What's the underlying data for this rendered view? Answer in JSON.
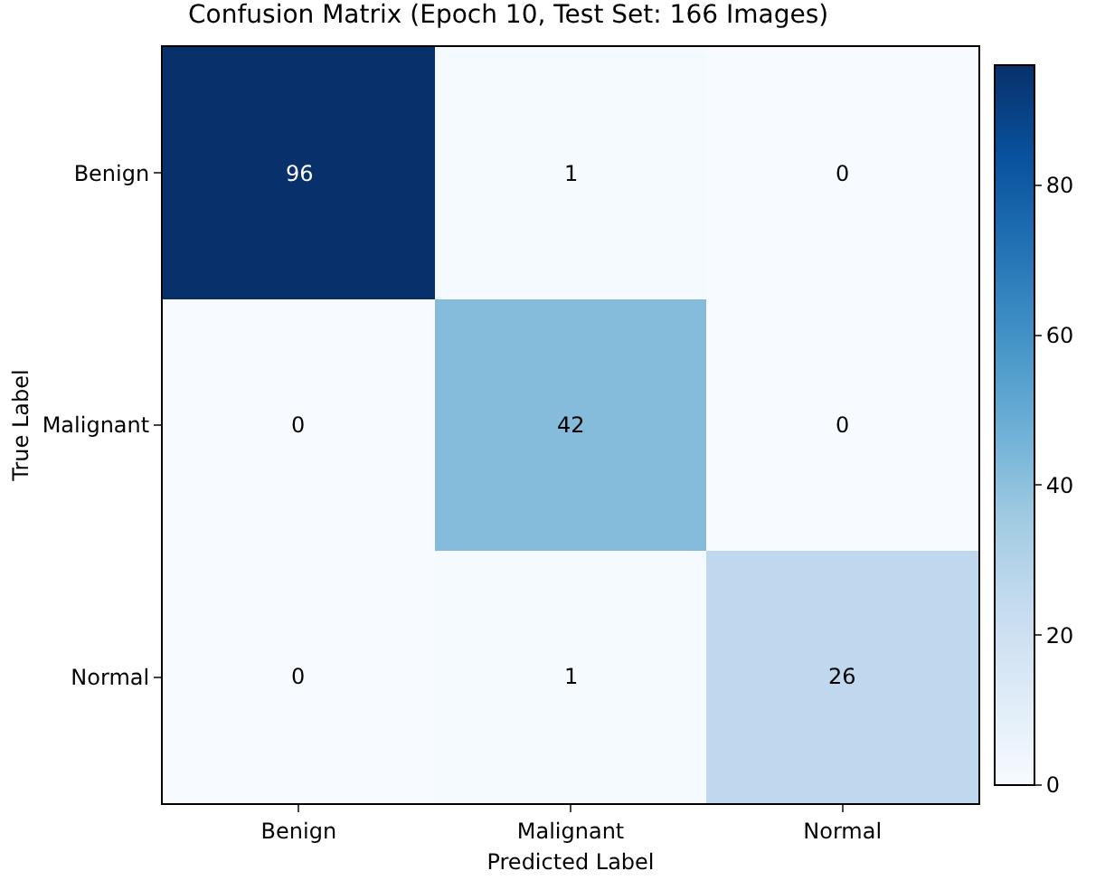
{
  "chart_data": {
    "type": "heatmap",
    "title": "Confusion Matrix (Epoch 10, Test Set: 166 Images)",
    "xlabel": "Predicted Label",
    "ylabel": "True Label",
    "categories": [
      "Benign",
      "Malignant",
      "Normal"
    ],
    "y_categories": [
      "Benign",
      "Malignant",
      "Normal"
    ],
    "cells": [
      [
        96,
        1,
        0
      ],
      [
        0,
        42,
        0
      ],
      [
        0,
        1,
        26
      ]
    ],
    "clim": [
      0,
      96
    ],
    "cticks": [
      0,
      20,
      40,
      60,
      80
    ],
    "data_labels": true
  }
}
